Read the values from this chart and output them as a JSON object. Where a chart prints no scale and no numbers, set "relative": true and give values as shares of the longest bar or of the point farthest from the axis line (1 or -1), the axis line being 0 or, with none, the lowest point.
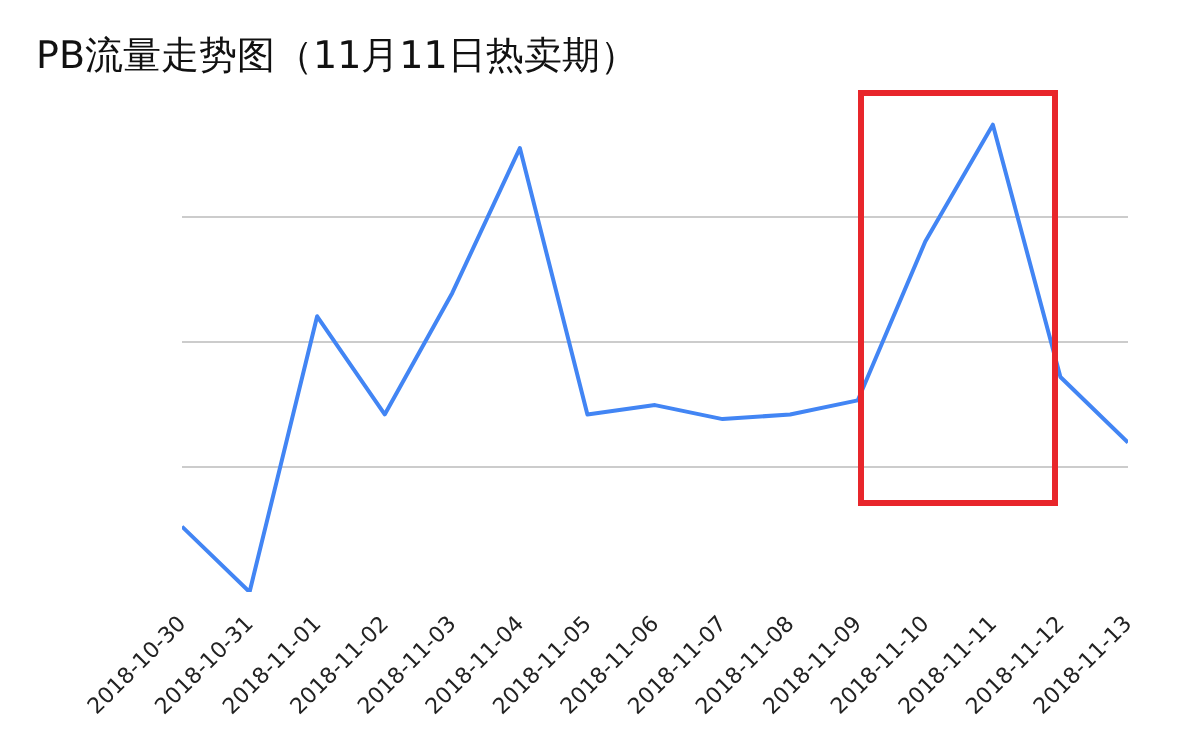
{
  "chart_data": {
    "type": "line",
    "title": "PB流量走势图（11月11日热卖期）",
    "relative": true,
    "grid": "y",
    "marker": "none",
    "line_style": "solid",
    "categories": [
      "2018-10-30",
      "2018-10-31",
      "2018-11-01",
      "2018-11-02",
      "2018-11-03",
      "2018-11-04",
      "2018-11-05",
      "2018-11-06",
      "2018-11-07",
      "2018-11-08",
      "2018-11-09",
      "2018-11-10",
      "2018-11-11",
      "2018-11-12",
      "2018-11-13"
    ],
    "series": [
      {
        "color": "#4285f4",
        "values": [
          0.14,
          0,
          0.59,
          0.38,
          0.64,
          0.95,
          0.38,
          0.4,
          0.37,
          0.38,
          0.41,
          0.75,
          1,
          0.46,
          0.32
        ]
      }
    ]
  }
}
